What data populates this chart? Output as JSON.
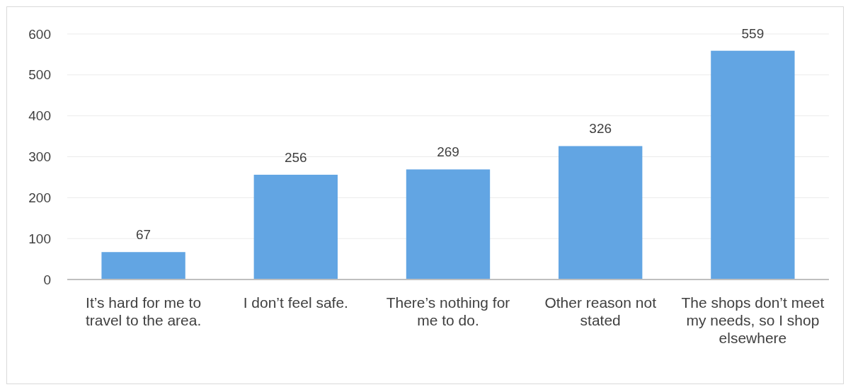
{
  "chart_data": {
    "type": "bar",
    "categories": [
      "It’s hard for me to travel to the area.",
      "I don’t feel safe.",
      "There’s nothing for me to do.",
      "Other reason not stated",
      "The shops don’t meet my needs, so I shop elsewhere"
    ],
    "values": [
      67,
      256,
      269,
      326,
      559
    ],
    "color": "#62a5e3",
    "ylim": [
      0,
      600
    ],
    "yticks": [
      0,
      100,
      200,
      300,
      400,
      500,
      600
    ],
    "grid": "y",
    "data_labels": true
  }
}
